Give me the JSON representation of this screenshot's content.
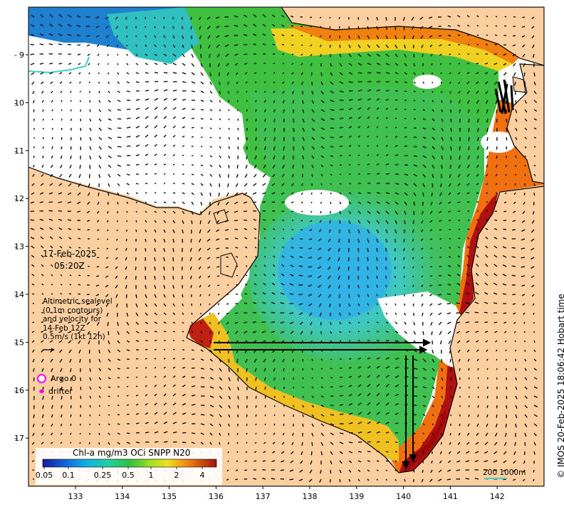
{
  "date": "17-Feb-2025",
  "time": "05:20Z",
  "altimetry_note": [
    "Altimetric sealevel",
    "(0.1m contours)",
    "and velocity for",
    "14-Feb 12Z",
    "0.5m/s (1kt 12h)"
  ],
  "markers": {
    "argo_label": "Argo 0",
    "drifter_label": "drifter"
  },
  "colorbar": {
    "title": "Chl-a mg/m3 OCi SNPP N20",
    "ticks": [
      "0.05",
      "0.1",
      "0.25",
      "0.5",
      "1",
      "2",
      "4"
    ]
  },
  "lon_ticks": [
    "133",
    "134",
    "135",
    "136",
    "137",
    "138",
    "139",
    "140",
    "141",
    "142"
  ],
  "lat_ticks": [
    "9",
    "10",
    "11",
    "12",
    "13",
    "14",
    "15",
    "16",
    "17"
  ],
  "scale_label": "200  1000m",
  "credit": "© IMOS 20-Feb-2025 18:06:42 Hobart time",
  "colors": {
    "land": "#fbcfa0",
    "ocean_nodata": "#ffffff",
    "accent_marker": "#ff00ff",
    "contour": "#40d0c8"
  }
}
